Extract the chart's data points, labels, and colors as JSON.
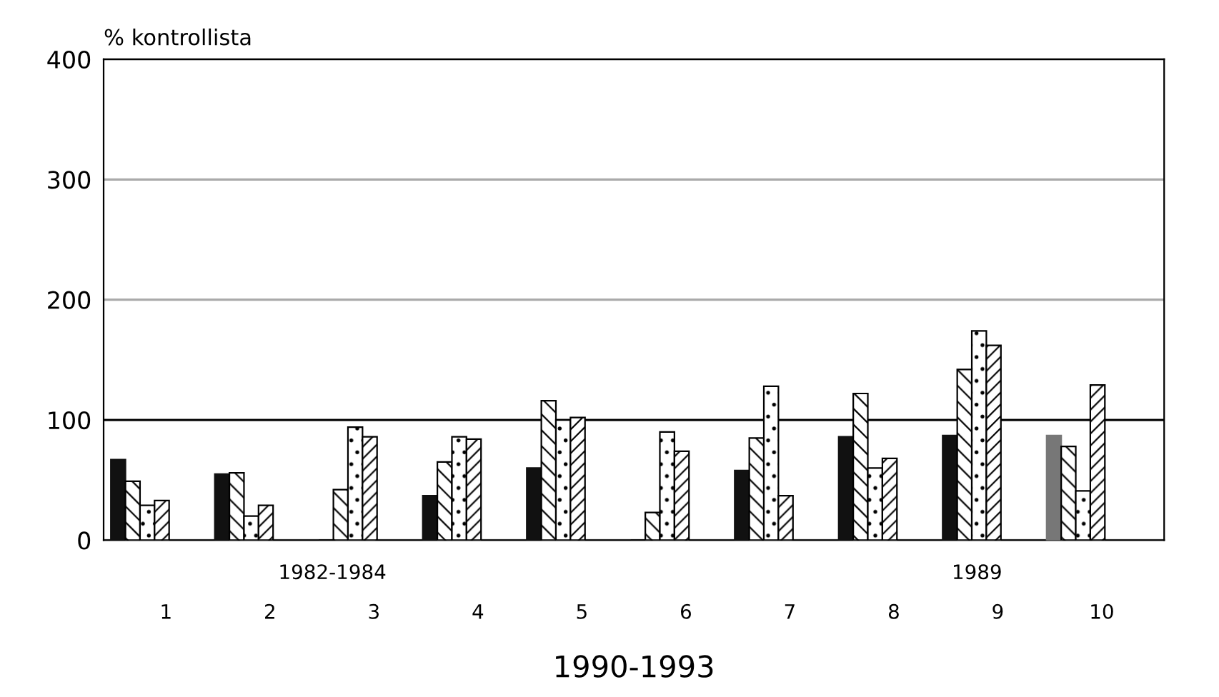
{
  "chart_data": {
    "type": "bar",
    "ylabel": "% kontrollista",
    "xlabel": "1990-1993",
    "categories": [
      "1",
      "2",
      "3",
      "4",
      "5",
      "6",
      "7",
      "8",
      "9",
      "10"
    ],
    "series": [
      {
        "color": "#111111",
        "colors": [
          "#111111",
          "#111111",
          "#111111",
          "#111111",
          "#111111",
          "#111111",
          "#111111",
          "#111111",
          "#111111",
          "#777777"
        ],
        "values": [
          67,
          55,
          0,
          37,
          60,
          0,
          58,
          86,
          87,
          87
        ]
      },
      {
        "color": "#000000",
        "values": [
          49,
          56,
          42,
          65,
          116,
          23,
          85,
          122,
          142,
          78
        ]
      },
      {
        "color": "#000000",
        "values": [
          29,
          20,
          94,
          86,
          100,
          90,
          128,
          60,
          174,
          41
        ]
      },
      {
        "color": "#000000",
        "values": [
          33,
          29,
          86,
          84,
          102,
          74,
          37,
          68,
          162,
          129
        ]
      }
    ],
    "ylim": [
      0,
      400
    ],
    "yticks": [
      0,
      100,
      200,
      300,
      400
    ],
    "grid": "y",
    "ref_lines": [
      {
        "axis": "y",
        "value": 100,
        "color": "#000000"
      }
    ],
    "annotations": [
      "1982-1984",
      "1989"
    ]
  }
}
